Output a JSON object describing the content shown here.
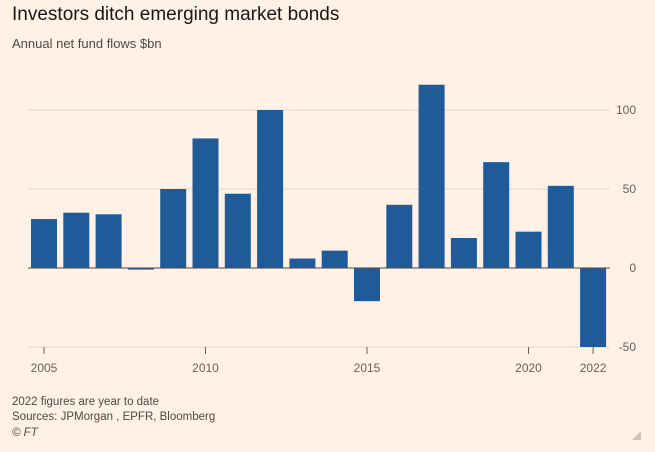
{
  "header": {
    "title": "Investors ditch emerging market bonds",
    "subtitle": "Annual net fund flows $bn"
  },
  "footer": {
    "note": "2022 figures are year to date",
    "sources": "Sources: JPMorgan , EPFR, Bloomberg",
    "credit": "© FT"
  },
  "colors": {
    "bar": "#1f5b99",
    "grid": "#e0d6cc",
    "zero": "#4d4845",
    "background": "#fff1e5"
  },
  "chart_data": {
    "type": "bar",
    "title": "Investors ditch emerging market bonds",
    "subtitle": "Annual net fund flows $bn",
    "xlabel": "",
    "ylabel": "",
    "categories": [
      "2005",
      "2006",
      "2007",
      "2008",
      "2009",
      "2010",
      "2011",
      "2012",
      "2013",
      "2014",
      "2015",
      "2016",
      "2017",
      "2018",
      "2019",
      "2020",
      "2021",
      "2022"
    ],
    "values": [
      31,
      35,
      34,
      -1,
      50,
      82,
      47,
      100,
      6,
      11,
      -21,
      40,
      116,
      19,
      67,
      23,
      52,
      -50
    ],
    "ylim": [
      -50,
      125
    ],
    "yticks": [
      -50,
      0,
      50,
      100
    ],
    "ytick_labels": [
      "-50",
      "0",
      "50",
      "100"
    ],
    "xtick_labels": [
      {
        "category": "2005",
        "label": "2005"
      },
      {
        "category": "2010",
        "label": "2010"
      },
      {
        "category": "2015",
        "label": "2015"
      },
      {
        "category": "2020",
        "label": "2020"
      },
      {
        "category": "2022",
        "label": "2022"
      }
    ],
    "grid": true,
    "yaxis_side": "right"
  }
}
